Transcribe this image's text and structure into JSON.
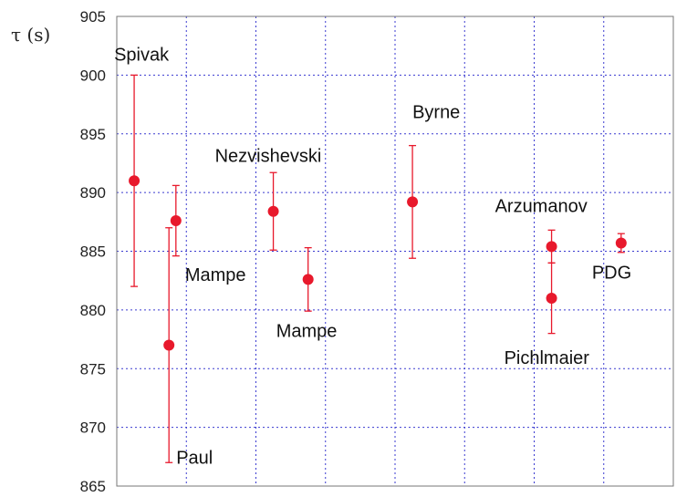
{
  "chart_data": {
    "type": "scatter",
    "title": "",
    "xlabel": "",
    "ylabel": "τ (s)",
    "ylim": [
      865,
      905
    ],
    "yticks": [
      865,
      870,
      875,
      880,
      885,
      890,
      895,
      900,
      905
    ],
    "xlim": [
      0,
      8
    ],
    "grid": true,
    "marker_color": "#e8192c",
    "errorbar_color": "#e8192c",
    "grid_color": "#3a3ad0",
    "points": [
      {
        "label": "Spivak",
        "x": 0.25,
        "y": 891.0,
        "y_low": 882.0,
        "y_high": 900.0
      },
      {
        "label": "Paul",
        "x": 0.75,
        "y": 877.0,
        "y_low": 867.0,
        "y_high": 887.0
      },
      {
        "label": "Mampe",
        "x": 0.85,
        "y": 887.6,
        "y_low": 884.6,
        "y_high": 890.6
      },
      {
        "label": "Nezvishevski",
        "x": 2.25,
        "y": 888.4,
        "y_low": 885.1,
        "y_high": 891.7
      },
      {
        "label": "Mampe",
        "x": 2.75,
        "y": 882.6,
        "y_low": 879.9,
        "y_high": 885.3
      },
      {
        "label": "Byrne",
        "x": 4.25,
        "y": 889.2,
        "y_low": 884.4,
        "y_high": 894.0
      },
      {
        "label": "Arzumanov",
        "x": 6.25,
        "y": 885.4,
        "y_low": 884.0,
        "y_high": 886.8
      },
      {
        "label": "Pichlmaier",
        "x": 6.25,
        "y": 881.0,
        "y_low": 878.0,
        "y_high": 884.0
      },
      {
        "label": "PDG",
        "x": 7.25,
        "y": 885.7,
        "y_low": 884.9,
        "y_high": 886.5
      }
    ]
  }
}
